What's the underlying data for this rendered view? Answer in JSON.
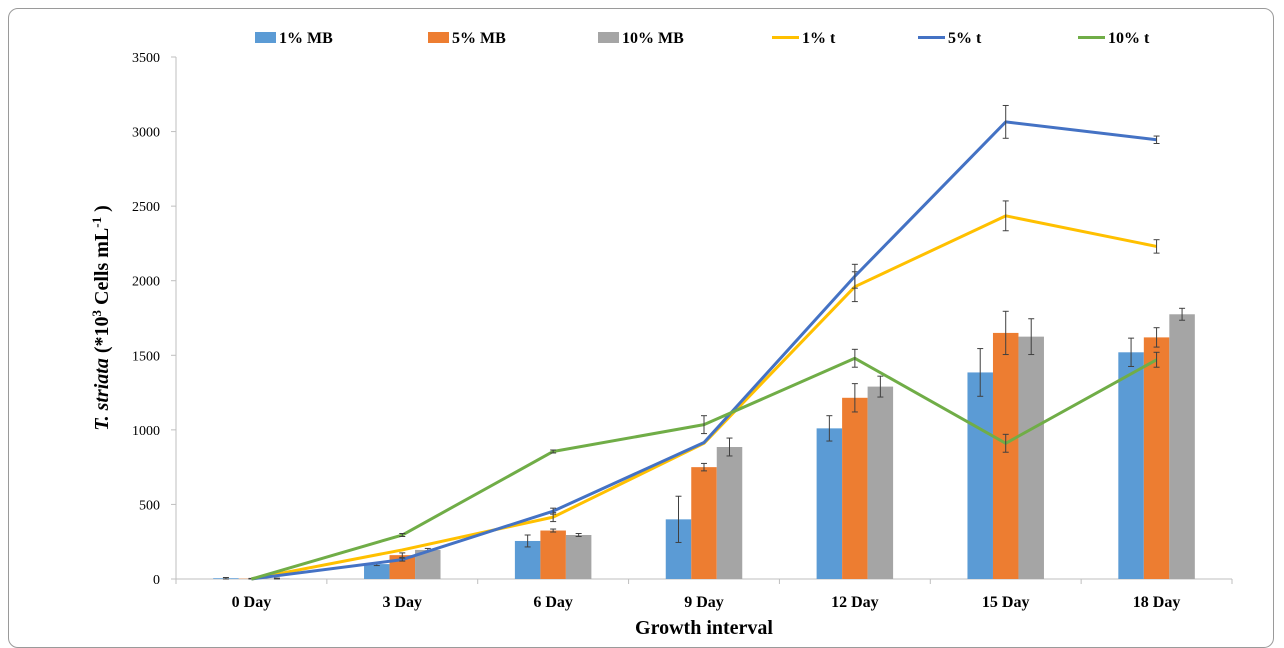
{
  "chart_data": {
    "type": "bar",
    "xlabel": "Growth interval",
    "ylabel": {
      "italic": "T. striata",
      "prefix": " (*10",
      "sup1": "3",
      "middle": " Cells mL",
      "sup2": "-1",
      "suffix": " )"
    },
    "ylim": [
      0,
      3500
    ],
    "yticks": [
      0,
      500,
      1000,
      1500,
      2000,
      2500,
      3000,
      3500
    ],
    "categories": [
      "0 Day",
      "3 Day",
      "6 Day",
      "9 Day",
      "12 Day",
      "15 Day",
      "18 Day"
    ],
    "grid": false,
    "legend_position": "top",
    "bar_series": [
      {
        "name": "1% MB",
        "color": "#5B9BD5",
        "values": [
          5,
          100,
          255,
          400,
          1010,
          1385,
          1520
        ],
        "errors": [
          5,
          10,
          40,
          155,
          85,
          160,
          95
        ]
      },
      {
        "name": "5% MB",
        "color": "#ED7D31",
        "values": [
          2,
          160,
          325,
          750,
          1215,
          1650,
          1620
        ],
        "errors": [
          2,
          15,
          10,
          25,
          95,
          145,
          65
        ]
      },
      {
        "name": "10% MB",
        "color": "#A5A5A5",
        "values": [
          3,
          195,
          295,
          885,
          1290,
          1625,
          1775
        ],
        "errors": [
          3,
          10,
          10,
          60,
          70,
          120,
          40
        ]
      }
    ],
    "line_series": [
      {
        "name": "1% t",
        "color": "#FFC000",
        "values": [
          0,
          195,
          415,
          910,
          1960,
          2435,
          2230
        ],
        "errors": [
          0,
          0,
          30,
          0,
          100,
          100,
          45
        ]
      },
      {
        "name": "5% t",
        "color": "#4472C4",
        "values": [
          0,
          130,
          455,
          915,
          2030,
          3065,
          2945
        ],
        "errors": [
          0,
          10,
          20,
          0,
          80,
          110,
          25
        ]
      },
      {
        "name": "10% t",
        "color": "#70AD47",
        "values": [
          0,
          295,
          855,
          1035,
          1480,
          910,
          1470
        ],
        "errors": [
          0,
          10,
          10,
          60,
          60,
          60,
          50
        ]
      }
    ]
  }
}
